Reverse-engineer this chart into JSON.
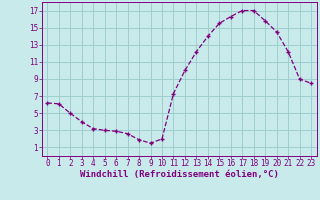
{
  "x": [
    0,
    1,
    2,
    3,
    4,
    5,
    6,
    7,
    8,
    9,
    10,
    11,
    12,
    13,
    14,
    15,
    16,
    17,
    18,
    19,
    20,
    21,
    22,
    23
  ],
  "y": [
    6.2,
    6.1,
    5.0,
    4.0,
    3.2,
    3.0,
    2.9,
    2.6,
    1.9,
    1.5,
    2.0,
    7.3,
    10.0,
    12.2,
    14.0,
    15.5,
    16.3,
    17.0,
    17.0,
    15.8,
    14.5,
    12.2,
    9.0,
    8.5
  ],
  "xlabel": "Windchill (Refroidissement éolien,°C)",
  "xlim": [
    -0.5,
    23.5
  ],
  "ylim": [
    0,
    18
  ],
  "yticks": [
    1,
    3,
    5,
    7,
    9,
    11,
    13,
    15,
    17
  ],
  "xticks": [
    0,
    1,
    2,
    3,
    4,
    5,
    6,
    7,
    8,
    9,
    10,
    11,
    12,
    13,
    14,
    15,
    16,
    17,
    18,
    19,
    20,
    21,
    22,
    23
  ],
  "line_color": "#800080",
  "marker": "+",
  "bg_color": "#c8eaea",
  "grid_color": "#9ecece",
  "font_size_ticks": 5.5,
  "font_size_xlabel": 6.5
}
